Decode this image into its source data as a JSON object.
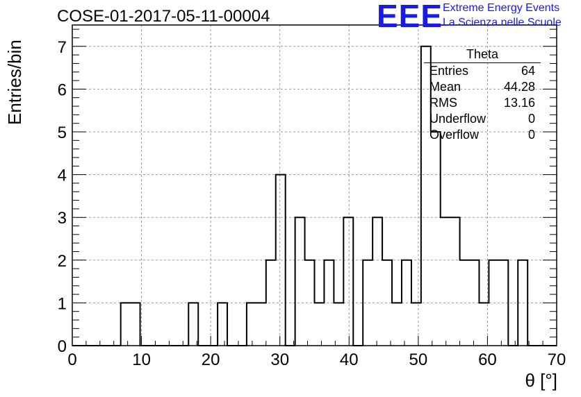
{
  "header": {
    "title": "COSE-01-2017-05-11-00004",
    "logo_text": "EEE",
    "logo_line1": "Extreme Energy Events",
    "logo_line2": "La Scienza nelle Scuole"
  },
  "stats": {
    "title": "Theta",
    "rows": [
      {
        "key": "Entries",
        "value": "64"
      },
      {
        "key": "Mean",
        "value": "44.28"
      },
      {
        "key": "RMS",
        "value": "13.16"
      },
      {
        "key": "Underflow",
        "value": "0"
      },
      {
        "key": "Overflow",
        "value": "0"
      }
    ]
  },
  "colors": {
    "line": "#000000",
    "grid": "#999999",
    "logo": "#1a1ae6"
  },
  "chart_data": {
    "type": "bar",
    "style": "step-histogram",
    "title": "COSE-01-2017-05-11-00004",
    "xlabel": "θ [°]",
    "ylabel": "Entries/bin",
    "xlim": [
      0,
      70
    ],
    "ylim": [
      0,
      7.5
    ],
    "xticks": [
      "0",
      "10",
      "20",
      "30",
      "40",
      "50",
      "60",
      "70"
    ],
    "yticks": [
      "0",
      "1",
      "2",
      "3",
      "4",
      "5",
      "6",
      "7"
    ],
    "grid": true,
    "bin_edges": [
      0,
      1.4,
      2.8,
      4.2,
      5.6,
      7,
      8.4,
      9.8,
      11.2,
      12.6,
      14,
      15.4,
      16.8,
      18.2,
      19.6,
      21,
      22.4,
      23.8,
      25.2,
      26.6,
      28,
      29.4,
      30.8,
      32.2,
      33.6,
      35,
      36.4,
      37.8,
      39.2,
      40.6,
      42,
      43.4,
      44.8,
      46.2,
      47.6,
      49,
      50.4,
      51.8,
      53.2,
      54.6,
      56,
      57.4,
      58.8,
      60.2,
      61.6,
      63,
      64.4,
      65.8,
      67.2,
      68.6,
      70
    ],
    "values": [
      0,
      0,
      0,
      0,
      0,
      1,
      1,
      0,
      0,
      0,
      0,
      0,
      1,
      0,
      0,
      1,
      0,
      0,
      1,
      1,
      2,
      4,
      0,
      3,
      2,
      1,
      2,
      1,
      3,
      0,
      2,
      3,
      2,
      1,
      2,
      1,
      7,
      5,
      3,
      3,
      2,
      2,
      1,
      2,
      2,
      0,
      2,
      0,
      0,
      0
    ]
  }
}
